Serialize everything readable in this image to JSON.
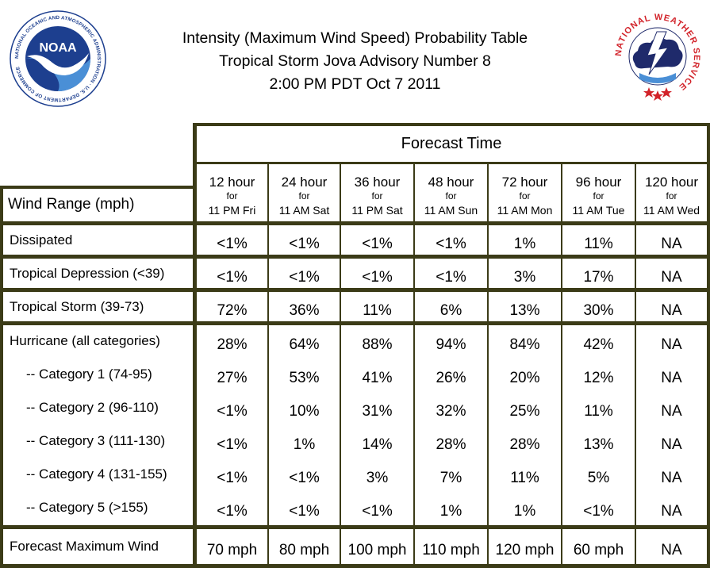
{
  "header": {
    "line1": "Intensity (Maximum Wind Speed) Probability Table",
    "line2": "Tropical Storm Jova Advisory Number 8",
    "line3": "2:00 PM PDT Oct 7 2011"
  },
  "logos": {
    "noaa_text": "NOAA",
    "noaa_ring": "NATIONAL OCEANIC AND ATMOSPHERIC ADMINISTRATION · U.S. DEPARTMENT OF COMMERCE",
    "nws_ring": "NATIONAL WEATHER SERVICE"
  },
  "colors": {
    "border": "#3b3b17",
    "noaa_blue": "#1d3f8f",
    "noaa_light": "#4a8fd6",
    "nws_red": "#d2232a",
    "nws_navy": "#1f2a6b"
  },
  "table": {
    "forecast_title": "Forecast Time",
    "wind_range_label": "Wind Range (mph)",
    "columns": [
      {
        "hour": "12 hour",
        "for": "for",
        "when": "11 PM Fri"
      },
      {
        "hour": "24 hour",
        "for": "for",
        "when": "11 AM Sat"
      },
      {
        "hour": "36 hour",
        "for": "for",
        "when": "11 PM Sat"
      },
      {
        "hour": "48 hour",
        "for": "for",
        "when": "11 AM Sun"
      },
      {
        "hour": "72 hour",
        "for": "for",
        "when": "11 AM Mon"
      },
      {
        "hour": "96 hour",
        "for": "for",
        "when": "11 AM Tue"
      },
      {
        "hour": "120 hour",
        "for": "for",
        "when": "11 AM Wed"
      }
    ],
    "rows": [
      {
        "label": "Dissipated",
        "values": [
          "<1%",
          "<1%",
          "<1%",
          "<1%",
          "1%",
          "11%",
          "NA"
        ]
      },
      {
        "label": "Tropical Depression (<39)",
        "values": [
          "<1%",
          "<1%",
          "<1%",
          "<1%",
          "3%",
          "17%",
          "NA"
        ]
      },
      {
        "label": "Tropical Storm (39-73)",
        "values": [
          "72%",
          "36%",
          "11%",
          "6%",
          "13%",
          "30%",
          "NA"
        ]
      },
      {
        "label": "Hurricane (all categories)",
        "values": [
          "28%",
          "64%",
          "88%",
          "94%",
          "84%",
          "42%",
          "NA"
        ]
      },
      {
        "label": "-- Category 1 (74-95)",
        "values": [
          "27%",
          "53%",
          "41%",
          "26%",
          "20%",
          "12%",
          "NA"
        ]
      },
      {
        "label": "-- Category 2 (96-110)",
        "values": [
          "<1%",
          "10%",
          "31%",
          "32%",
          "25%",
          "11%",
          "NA"
        ]
      },
      {
        "label": "-- Category 3 (111-130)",
        "values": [
          "<1%",
          "1%",
          "14%",
          "28%",
          "28%",
          "13%",
          "NA"
        ]
      },
      {
        "label": "-- Category 4 (131-155)",
        "values": [
          "<1%",
          "<1%",
          "3%",
          "7%",
          "11%",
          "5%",
          "NA"
        ]
      },
      {
        "label": "-- Category 5 (>155)",
        "values": [
          "<1%",
          "<1%",
          "<1%",
          "1%",
          "1%",
          "<1%",
          "NA"
        ]
      },
      {
        "label": "Forecast Maximum Wind",
        "values": [
          "70 mph",
          "80 mph",
          "100 mph",
          "110 mph",
          "120 mph",
          "60 mph",
          "NA"
        ]
      }
    ]
  }
}
